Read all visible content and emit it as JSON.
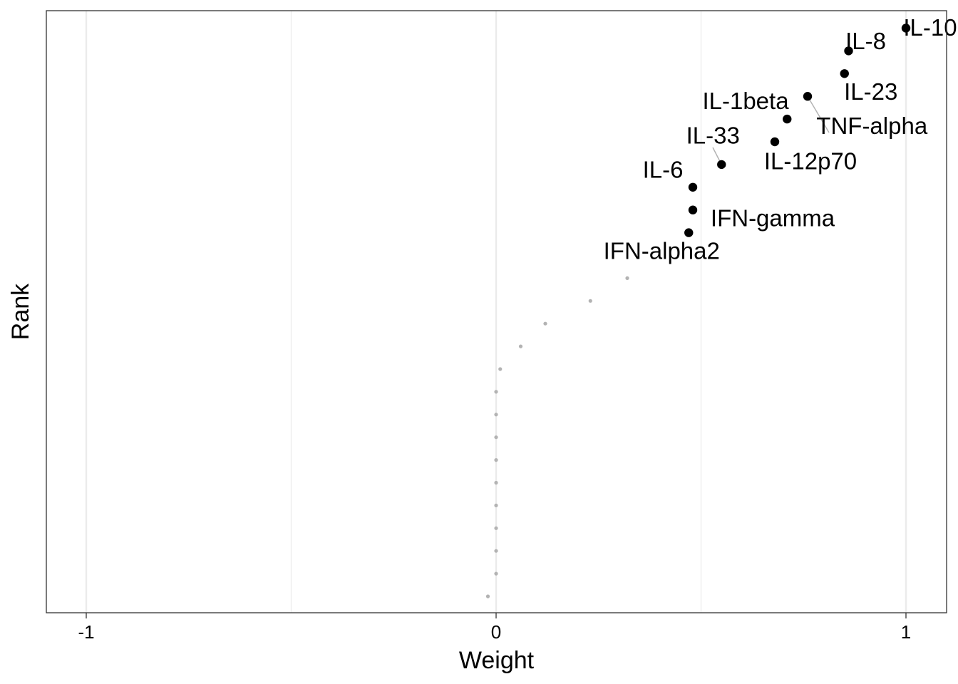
{
  "chart_data": {
    "type": "scatter",
    "title": "",
    "xlabel": "Weight",
    "ylabel": "Rank",
    "xlim": [
      -1.1,
      1.1
    ],
    "x_ticks": [
      -1,
      0,
      1
    ],
    "x_tick_labels": [
      "-1",
      "0",
      "1"
    ],
    "x_minor_gridlines": [
      -0.5,
      0.5
    ],
    "y_ticks": [],
    "grid": "vertical",
    "legend": "none",
    "colors": {
      "highlight": "#000000",
      "other": "#b3b3b3",
      "grid": "#ebebeb",
      "border": "#333333"
    },
    "highlighted": [
      {
        "label": "IL-10",
        "x": 1.0,
        "rank": 1
      },
      {
        "label": "IL-8",
        "x": 0.86,
        "rank": 2
      },
      {
        "label": "IL-23",
        "x": 0.85,
        "rank": 3
      },
      {
        "label": "IL-1beta",
        "x": 0.76,
        "rank": 4
      },
      {
        "label": "TNF-alpha",
        "x": 0.71,
        "rank": 5
      },
      {
        "label": "IL-12p70",
        "x": 0.68,
        "rank": 6
      },
      {
        "label": "IL-33",
        "x": 0.55,
        "rank": 7
      },
      {
        "label": "IL-6",
        "x": 0.48,
        "rank": 8
      },
      {
        "label": "IFN-gamma",
        "x": 0.48,
        "rank": 9
      },
      {
        "label": "IFN-alpha2",
        "x": 0.47,
        "rank": 10
      }
    ],
    "others": [
      {
        "x": 0.32,
        "rank": 12
      },
      {
        "x": 0.23,
        "rank": 13
      },
      {
        "x": 0.12,
        "rank": 14
      },
      {
        "x": 0.06,
        "rank": 15
      },
      {
        "x": 0.01,
        "rank": 16
      },
      {
        "x": 0.0,
        "rank": 17
      },
      {
        "x": 0.0,
        "rank": 18
      },
      {
        "x": 0.0,
        "rank": 19
      },
      {
        "x": 0.0,
        "rank": 20
      },
      {
        "x": 0.0,
        "rank": 21
      },
      {
        "x": 0.0,
        "rank": 22
      },
      {
        "x": 0.0,
        "rank": 23
      },
      {
        "x": 0.0,
        "rank": 24
      },
      {
        "x": 0.0,
        "rank": 25
      },
      {
        "x": -0.02,
        "rank": 26
      }
    ]
  }
}
